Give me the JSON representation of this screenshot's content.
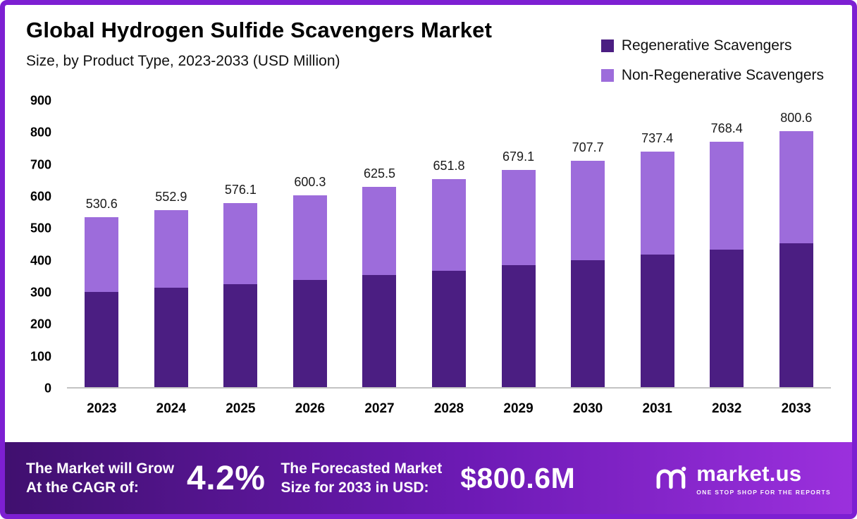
{
  "title": "Global Hydrogen Sulfide Scavengers Market",
  "subtitle": "Size, by Product Type, 2023-2033 (USD Million)",
  "colors": {
    "regenerative": "#4b1e82",
    "non_regenerative": "#9d6cdb",
    "frame": "#7d1fd2",
    "footer_gradient_start": "#40106f",
    "footer_gradient_end": "#9b30dd"
  },
  "chart_data": {
    "type": "bar",
    "stacked": true,
    "title": "Global Hydrogen Sulfide Scavengers Market Size, by Product Type, 2023-2033 (USD Million)",
    "categories": [
      "2023",
      "2024",
      "2025",
      "2026",
      "2027",
      "2028",
      "2029",
      "2030",
      "2031",
      "2032",
      "2033"
    ],
    "series": [
      {
        "name": "Regenerative Scavengers",
        "color": "#4b1e82",
        "values": [
          298.0,
          310.0,
          322.0,
          336.0,
          351.0,
          365.0,
          381.0,
          397.0,
          414.0,
          431.0,
          449.0
        ]
      },
      {
        "name": "Non-Regenerative Scavengers",
        "color": "#9d6cdb",
        "values": [
          232.6,
          242.9,
          254.1,
          264.3,
          274.5,
          286.8,
          298.1,
          310.7,
          323.4,
          337.4,
          351.6
        ]
      }
    ],
    "totals": [
      530.6,
      552.9,
      576.1,
      600.3,
      625.5,
      651.8,
      679.1,
      707.7,
      737.4,
      768.4,
      800.6
    ],
    "ylim": [
      0,
      900
    ],
    "yticks": [
      0,
      100,
      200,
      300,
      400,
      500,
      600,
      700,
      800,
      900
    ],
    "grid": false,
    "legend_position": "top-right"
  },
  "footer": {
    "left_line1": "The Market will Grow",
    "left_line2": "At the CAGR of:",
    "cagr": "4.2%",
    "mid_line1": "The Forecasted Market",
    "mid_line2": "Size for 2033 in USD:",
    "forecast": "$800.6M",
    "brand": "market.us",
    "tagline": "ONE STOP SHOP FOR THE REPORTS"
  }
}
